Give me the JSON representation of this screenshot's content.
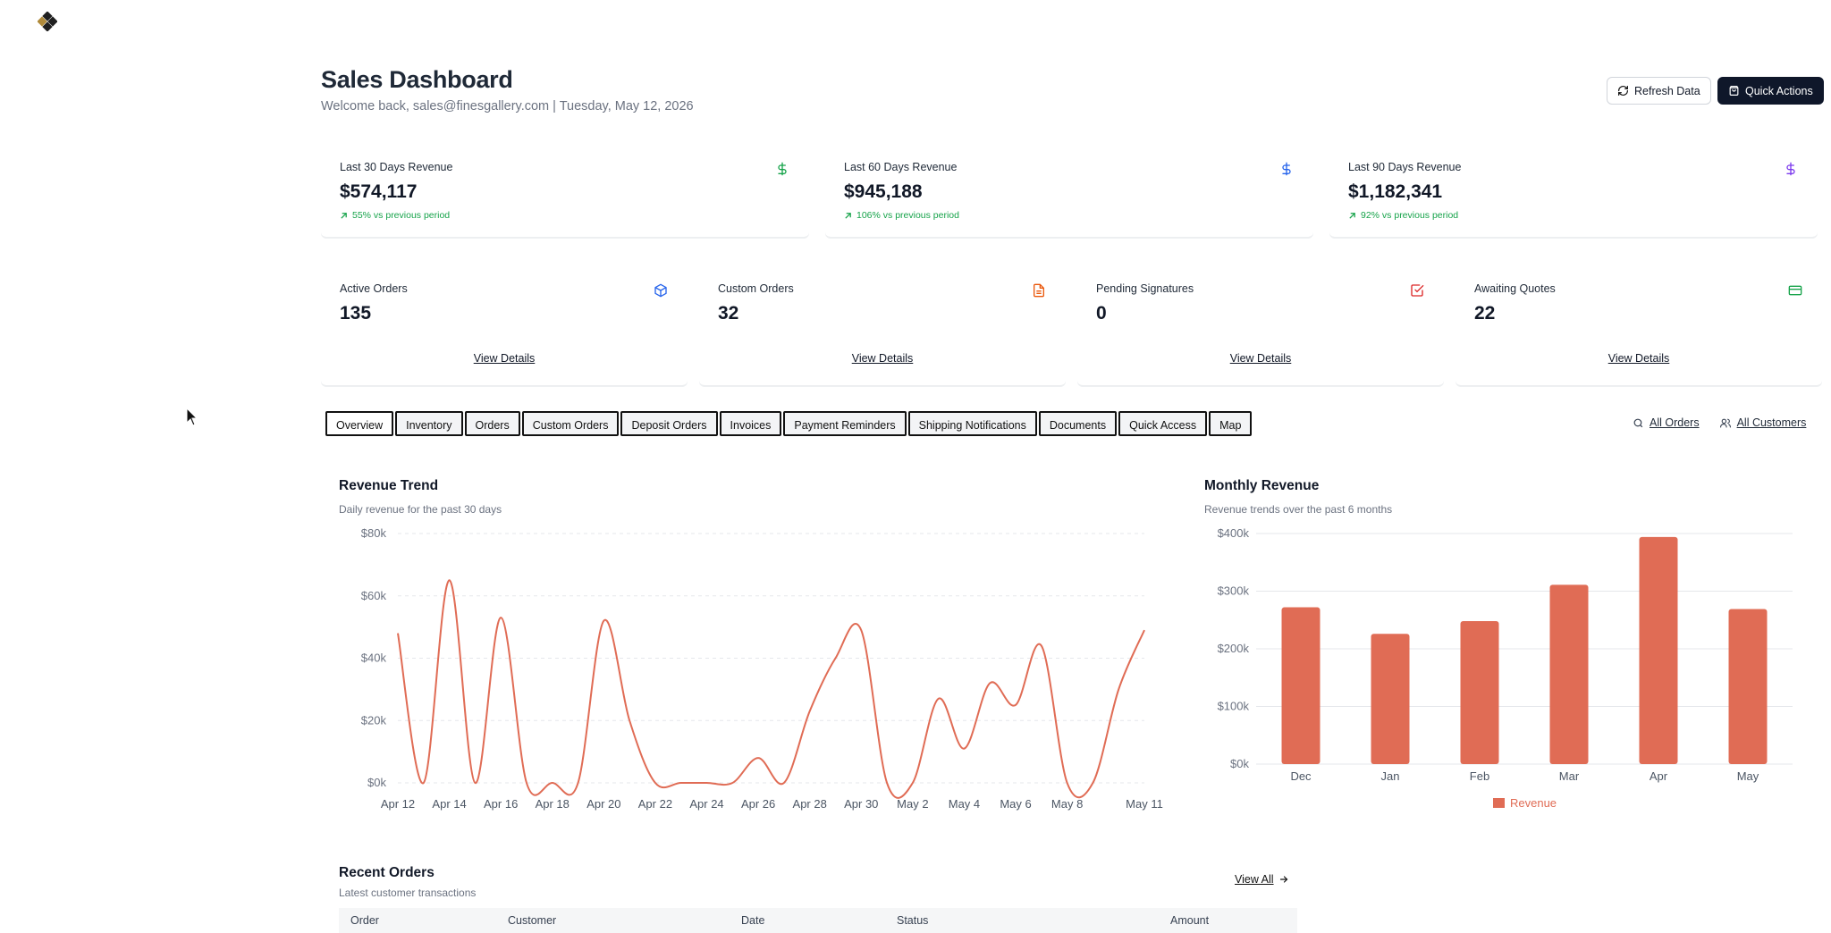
{
  "header": {
    "title": "Sales Dashboard",
    "subtitle": "Welcome back, sales@finesgallery.com | Tuesday, May 12, 2026",
    "refresh_label": "Refresh Data",
    "quick_actions_label": "Quick Actions"
  },
  "revenue_cards": [
    {
      "label": "Last 30 Days Revenue",
      "value": "$574,117",
      "change": "55% vs previous period",
      "icon": "dollar-icon",
      "icon_color": "#16a34a"
    },
    {
      "label": "Last 60 Days Revenue",
      "value": "$945,188",
      "change": "106% vs previous period",
      "icon": "dollar-icon",
      "icon_color": "#2563eb"
    },
    {
      "label": "Last 90 Days Revenue",
      "value": "$1,182,341",
      "change": "92% vs previous period",
      "icon": "dollar-icon",
      "icon_color": "#7c3aed"
    }
  ],
  "stat_cards": [
    {
      "label": "Active Orders",
      "value": "135",
      "link": "View Details",
      "icon": "package-icon",
      "icon_color": "#2563eb"
    },
    {
      "label": "Custom Orders",
      "value": "32",
      "link": "View Details",
      "icon": "file-text-icon",
      "icon_color": "#ea580c"
    },
    {
      "label": "Pending Signatures",
      "value": "0",
      "link": "View Details",
      "icon": "check-square-icon",
      "icon_color": "#dc2626"
    },
    {
      "label": "Awaiting Quotes",
      "value": "22",
      "link": "View Details",
      "icon": "credit-card-icon",
      "icon_color": "#16a34a"
    }
  ],
  "tabs": [
    "Overview",
    "Inventory",
    "Orders",
    "Custom Orders",
    "Deposit Orders",
    "Invoices",
    "Payment Reminders",
    "Shipping Notifications",
    "Documents",
    "Quick Access",
    "Map"
  ],
  "tab_links": {
    "orders": "All Orders",
    "customers": "All Customers"
  },
  "revenue_trend": {
    "title": "Revenue Trend",
    "subtitle": "Daily revenue for the past 30 days"
  },
  "monthly_revenue": {
    "title": "Monthly Revenue",
    "subtitle": "Revenue trends over the past 6 months"
  },
  "recent_orders": {
    "title": "Recent Orders",
    "subtitle": "Latest customer transactions",
    "view_all": "View All",
    "columns": [
      "Order",
      "Customer",
      "Date",
      "Status",
      "Amount"
    ]
  },
  "colors": {
    "accent": "#e06c55",
    "primary_dark": "#0f172a",
    "positive": "#16a34a"
  },
  "chart_data": [
    {
      "type": "line",
      "title": "Revenue Trend",
      "x": [
        "Apr 12",
        "Apr 13",
        "Apr 14",
        "Apr 15",
        "Apr 16",
        "Apr 17",
        "Apr 18",
        "Apr 19",
        "Apr 20",
        "Apr 21",
        "Apr 22",
        "Apr 23",
        "Apr 24",
        "Apr 25",
        "Apr 26",
        "Apr 27",
        "Apr 28",
        "Apr 29",
        "Apr 30",
        "May 1",
        "May 2",
        "May 3",
        "May 4",
        "May 5",
        "May 6",
        "May 7",
        "May 8",
        "May 9",
        "May 10",
        "May 11"
      ],
      "x_tick_labels": [
        "Apr 12",
        "Apr 14",
        "Apr 16",
        "Apr 18",
        "Apr 20",
        "Apr 22",
        "Apr 24",
        "Apr 26",
        "Apr 28",
        "Apr 30",
        "May 2",
        "May 4",
        "May 6",
        "May 8",
        "May 11"
      ],
      "series": [
        {
          "values": [
            48000,
            0,
            65000,
            0,
            53000,
            0,
            0,
            0,
            52000,
            20000,
            0,
            0,
            0,
            0,
            8000,
            0,
            23000,
            40000,
            49000,
            0,
            0,
            27000,
            11000,
            32000,
            25000,
            44000,
            0,
            0,
            30000,
            49000
          ]
        }
      ],
      "ylim": [
        0,
        80000
      ],
      "y_ticks": [
        "$0k",
        "$20k",
        "$40k",
        "$60k",
        "$80k"
      ],
      "grid": true
    },
    {
      "type": "bar",
      "title": "Monthly Revenue",
      "categories": [
        "Dec",
        "Jan",
        "Feb",
        "Mar",
        "Apr",
        "May"
      ],
      "series": [
        {
          "name": "Revenue",
          "values": [
            272000,
            226000,
            248000,
            311000,
            394000,
            269000
          ]
        }
      ],
      "ylim": [
        0,
        400000
      ],
      "y_ticks": [
        "$0k",
        "$100k",
        "$200k",
        "$300k",
        "$400k"
      ],
      "grid": true,
      "legend": "bottom"
    }
  ]
}
